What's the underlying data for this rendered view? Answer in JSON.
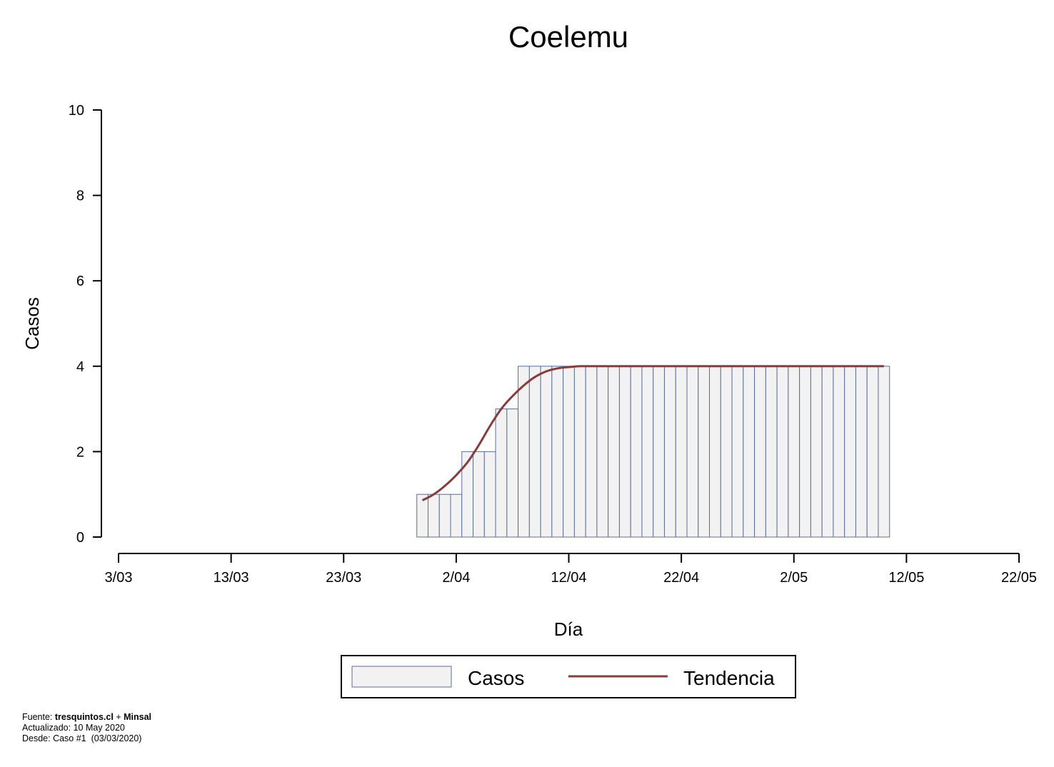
{
  "chart_data": {
    "type": "bar",
    "title": "Coelemu",
    "xlabel": "Día",
    "ylabel": "Casos",
    "ylim": [
      0,
      10
    ],
    "yticks": [
      "0",
      "2",
      "4",
      "6",
      "8",
      "10"
    ],
    "xlim": [
      "2020-03-03",
      "2020-05-22"
    ],
    "xticks": [
      {
        "date": "2020-03-03",
        "label": "3/03"
      },
      {
        "date": "2020-03-13",
        "label": "13/03"
      },
      {
        "date": "2020-03-23",
        "label": "23/03"
      },
      {
        "date": "2020-04-02",
        "label": "2/04"
      },
      {
        "date": "2020-04-12",
        "label": "12/04"
      },
      {
        "date": "2020-04-22",
        "label": "22/04"
      },
      {
        "date": "2020-05-02",
        "label": "2/05"
      },
      {
        "date": "2020-05-12",
        "label": "12/05"
      },
      {
        "date": "2020-05-22",
        "label": "22/05"
      }
    ],
    "grid": false,
    "legend_position": "bottom",
    "series": [
      {
        "name": "Casos",
        "type": "bar",
        "color": "#f2f2f2",
        "edge_color": "#5a6e99",
        "first_date": "2020-03-30",
        "values": [
          1,
          1,
          1,
          1,
          2,
          2,
          2,
          3,
          3,
          4,
          4,
          4,
          4,
          4,
          4,
          4,
          4,
          4,
          4,
          4,
          4,
          4,
          4,
          4,
          4,
          4,
          4,
          4,
          4,
          4,
          4,
          4,
          4,
          4,
          4,
          4,
          4,
          4,
          4,
          4,
          4,
          4
        ]
      },
      {
        "name": "Tendencia",
        "type": "line",
        "color": "#8b3a3a",
        "first_date": "2020-03-30",
        "values": [
          0.86,
          1.0,
          1.2,
          1.45,
          1.75,
          2.15,
          2.6,
          3.0,
          3.3,
          3.55,
          3.75,
          3.88,
          3.95,
          3.98,
          4,
          4,
          4,
          4,
          4,
          4,
          4,
          4,
          4,
          4,
          4,
          4,
          4,
          4,
          4,
          4,
          4,
          4,
          4,
          4,
          4,
          4,
          4,
          4,
          4,
          4,
          4,
          4
        ]
      }
    ]
  },
  "footer": {
    "source_prefix": "Fuente: ",
    "source_site": "tresquintos.cl",
    "source_join": " + ",
    "source_org": "Minsal",
    "updated": "Actualizado: 10 May 2020",
    "since": "Desde: Caso #1  (03/03/2020)"
  }
}
